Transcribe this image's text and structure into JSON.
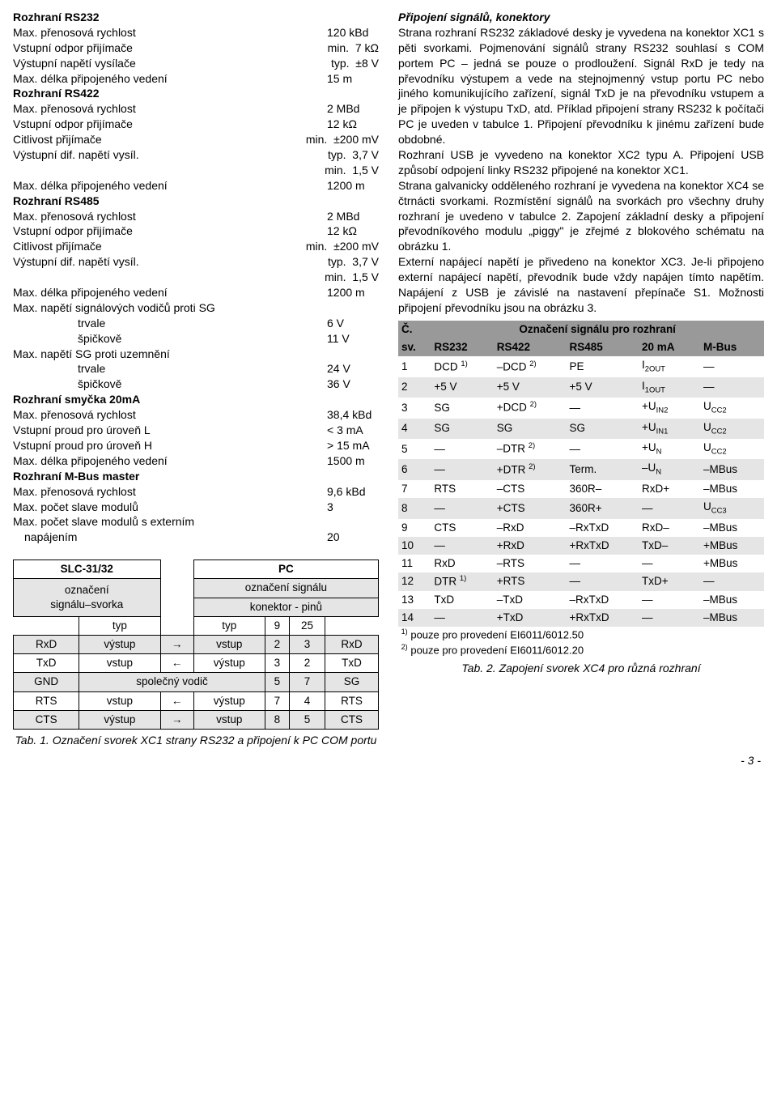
{
  "left": {
    "rs232": {
      "title": "Rozhraní RS232",
      "l1": {
        "label": "Max. přenosová rychlost",
        "val": "120 kBd"
      },
      "l2": {
        "label": "Vstupní odpor přijímače",
        "mid": "min.",
        "val": "7 kΩ"
      },
      "l3": {
        "label": "Výstupní napětí vysílače",
        "mid": "typ.",
        "val": "±8 V"
      },
      "l4": {
        "label": "Max. délka připojeného vedení",
        "val": "15 m"
      }
    },
    "rs422": {
      "title": "Rozhraní RS422",
      "l1": {
        "label": "Max. přenosová rychlost",
        "val": "2 MBd"
      },
      "l2": {
        "label": "Vstupní odpor přijímače",
        "val": "12 kΩ"
      },
      "l3": {
        "label": "Citlivost přijímače",
        "mid": "min.",
        "val": "±200 mV"
      },
      "l4": {
        "label": "Výstupní dif. napětí vysíl.",
        "mid": "typ.",
        "val": "3,7 V"
      },
      "l5": {
        "mid": "min.",
        "val": "1,5 V"
      },
      "l6": {
        "label": "Max. délka připojeného vedení",
        "val": "1200 m"
      }
    },
    "rs485": {
      "title": "Rozhraní RS485",
      "l1": {
        "label": "Max. přenosová rychlost",
        "val": "2 MBd"
      },
      "l2": {
        "label": "Vstupní odpor přijímače",
        "val": "12 kΩ"
      },
      "l3": {
        "label": "Citlivost přijímače",
        "mid": "min.",
        "val": "±200 mV"
      },
      "l4": {
        "label": "Výstupní dif. napětí vysíl.",
        "mid": "typ.",
        "val": "3,7 V"
      },
      "l5": {
        "mid": "min.",
        "val": "1,5 V"
      },
      "l6": {
        "label": "Max. délka připojeného vedení",
        "val": "1200 m"
      },
      "l7": {
        "label": "Max. napětí signálových vodičů proti SG"
      },
      "l8": {
        "mid": "trvale",
        "val": "6 V"
      },
      "l9": {
        "mid": "špičkově",
        "val": "11 V"
      },
      "l10": {
        "label": "Max. napětí SG proti uzemnění"
      },
      "l11": {
        "mid": "trvale",
        "val": "24 V"
      },
      "l12": {
        "mid": "špičkově",
        "val": "36 V"
      }
    },
    "loop": {
      "title": "Rozhraní smyčka 20mA",
      "l1": {
        "label": "Max. přenosová rychlost",
        "val": "38,4 kBd"
      },
      "l2": {
        "label": "Vstupní proud pro úroveň L",
        "val": "< 3 mA"
      },
      "l3": {
        "label": "Vstupní proud pro úroveň H",
        "val": "> 15 mA"
      },
      "l4": {
        "label": "Max. délka připojeného vedení",
        "val": "1500 m"
      }
    },
    "mbus": {
      "title": "Rozhraní M-Bus master",
      "l1": {
        "label": "Max. přenosová rychlost",
        "val": "9,6 kBd"
      },
      "l2": {
        "label": "Max. počet slave modulů",
        "val": "3"
      },
      "l3a": "Max. počet slave modulů s externím",
      "l3b": {
        "label": "napájením",
        "val": "20"
      }
    },
    "table1": {
      "h_slc": "SLC-31/32",
      "h_pc": "PC",
      "h_ozn1": "označení",
      "h_sig_sv": "signálu–svorka",
      "h_ozn_sig": "označení signálu",
      "h_konektor": "konektor - pinů",
      "h_typ": "typ",
      "h_9": "9",
      "h_25": "25",
      "rows": [
        {
          "a": "RxD",
          "b": "výstup",
          "c": "→",
          "d": "vstup",
          "e": "2",
          "f": "3",
          "g": "RxD"
        },
        {
          "a": "TxD",
          "b": "vstup",
          "c": "←",
          "d": "výstup",
          "e": "3",
          "f": "2",
          "g": "TxD"
        },
        {
          "a": "GND",
          "bcd": "společný vodič",
          "e": "5",
          "f": "7",
          "g": "SG"
        },
        {
          "a": "RTS",
          "b": "vstup",
          "c": "←",
          "d": "výstup",
          "e": "7",
          "f": "4",
          "g": "RTS"
        },
        {
          "a": "CTS",
          "b": "výstup",
          "c": "→",
          "d": "vstup",
          "e": "8",
          "f": "5",
          "g": "CTS"
        }
      ],
      "caption": "Tab. 1. Označení svorek XC1 strany RS232 a připojení k PC COM portu"
    }
  },
  "right": {
    "heading": "Připojení signálů, konektory",
    "p1": "Strana rozhraní RS232 základové desky je vyvedena na konektor XC1 s pěti svorkami. Pojmenování signálů strany RS232 souhlasí s COM portem PC – jedná se pouze o prodloužení. Signál RxD je tedy na převodníku výstupem a vede na stejnojmenný vstup portu PC nebo jiného komunikujícího zařízení, signál TxD je na převodníku vstupem a je připojen k výstupu TxD, atd. Příklad připojení strany RS232 k počítači PC je uveden v tabulce 1. Připojení převodníku k jinému zařízení bude obdobné.",
    "p2": "Rozhraní USB je vyvedeno na konektor XC2 typu A. Připojení USB způsobí odpojení linky RS232 připojené na konektor XC1.",
    "p3": "Strana galvanicky odděleného rozhraní je vyvedena na konektor XC4 se čtrnácti svorkami. Rozmístění signálů na svorkách pro všechny druhy rozhraní je uvedeno v tabulce 2. Zapojení základní desky a připojení převodníkového modulu „piggy\" je zřejmé z blokového schématu na obrázku 1.",
    "p4": "Externí napájecí napětí je přivedeno na konektor XC3. Je-li připojeno externí napájecí napětí, převodník bude vždy napájen tímto napětím. Napájení z USB je závislé na nastavení přepínače S1. Možnosti připojení převodníku jsou na obrázku 3.",
    "table2": {
      "h_c": "Č.",
      "h_sv": "sv.",
      "h_span": "Označení signálu pro rozhraní",
      "h_rs232": "RS232",
      "h_rs422": "RS422",
      "h_rs485": "RS485",
      "h_20ma": "20 mA",
      "h_mbus": "M-Bus",
      "rows": [
        {
          "n": "1",
          "a": "DCD 1)",
          "b": "–DCD 2)",
          "c": "PE",
          "d": "I2OUT",
          "e": "—"
        },
        {
          "n": "2",
          "a": "+5 V",
          "b": "+5 V",
          "c": "+5 V",
          "d": "I1OUT",
          "e": "—"
        },
        {
          "n": "3",
          "a": "SG",
          "b": "+DCD 2)",
          "c": "—",
          "d": "+UIN2",
          "e": "UCC2"
        },
        {
          "n": "4",
          "a": "SG",
          "b": "SG",
          "c": "SG",
          "d": "+UIN1",
          "e": "UCC2"
        },
        {
          "n": "5",
          "a": "—",
          "b": "–DTR 2)",
          "c": "—",
          "d": "+UN",
          "e": "UCC2"
        },
        {
          "n": "6",
          "a": "—",
          "b": "+DTR 2)",
          "c": "Term.",
          "d": "–UN",
          "e": "–MBus"
        },
        {
          "n": "7",
          "a": "RTS",
          "b": "–CTS",
          "c": "360R–",
          "d": "RxD+",
          "e": "–MBus"
        },
        {
          "n": "8",
          "a": "—",
          "b": "+CTS",
          "c": "360R+",
          "d": "—",
          "e": "UCC3"
        },
        {
          "n": "9",
          "a": "CTS",
          "b": "–RxD",
          "c": "–RxTxD",
          "d": "RxD–",
          "e": "–MBus"
        },
        {
          "n": "10",
          "a": "—",
          "b": "+RxD",
          "c": "+RxTxD",
          "d": "TxD–",
          "e": "+MBus"
        },
        {
          "n": "11",
          "a": "RxD",
          "b": "–RTS",
          "c": "—",
          "d": "—",
          "e": "+MBus"
        },
        {
          "n": "12",
          "a": "DTR 1)",
          "b": "+RTS",
          "c": "—",
          "d": "TxD+",
          "e": "—"
        },
        {
          "n": "13",
          "a": "TxD",
          "b": "–TxD",
          "c": "–RxTxD",
          "d": "—",
          "e": "–MBus"
        },
        {
          "n": "14",
          "a": "—",
          "b": "+TxD",
          "c": "+RxTxD",
          "d": "—",
          "e": "–MBus"
        }
      ],
      "fn1": "1) pouze pro provedení EI6011/6012.50",
      "fn2": "2) pouze pro provedení EI6011/6012.20",
      "caption": "Tab. 2. Zapojení svorek XC4 pro různá rozhraní"
    }
  },
  "page": "- 3 -"
}
